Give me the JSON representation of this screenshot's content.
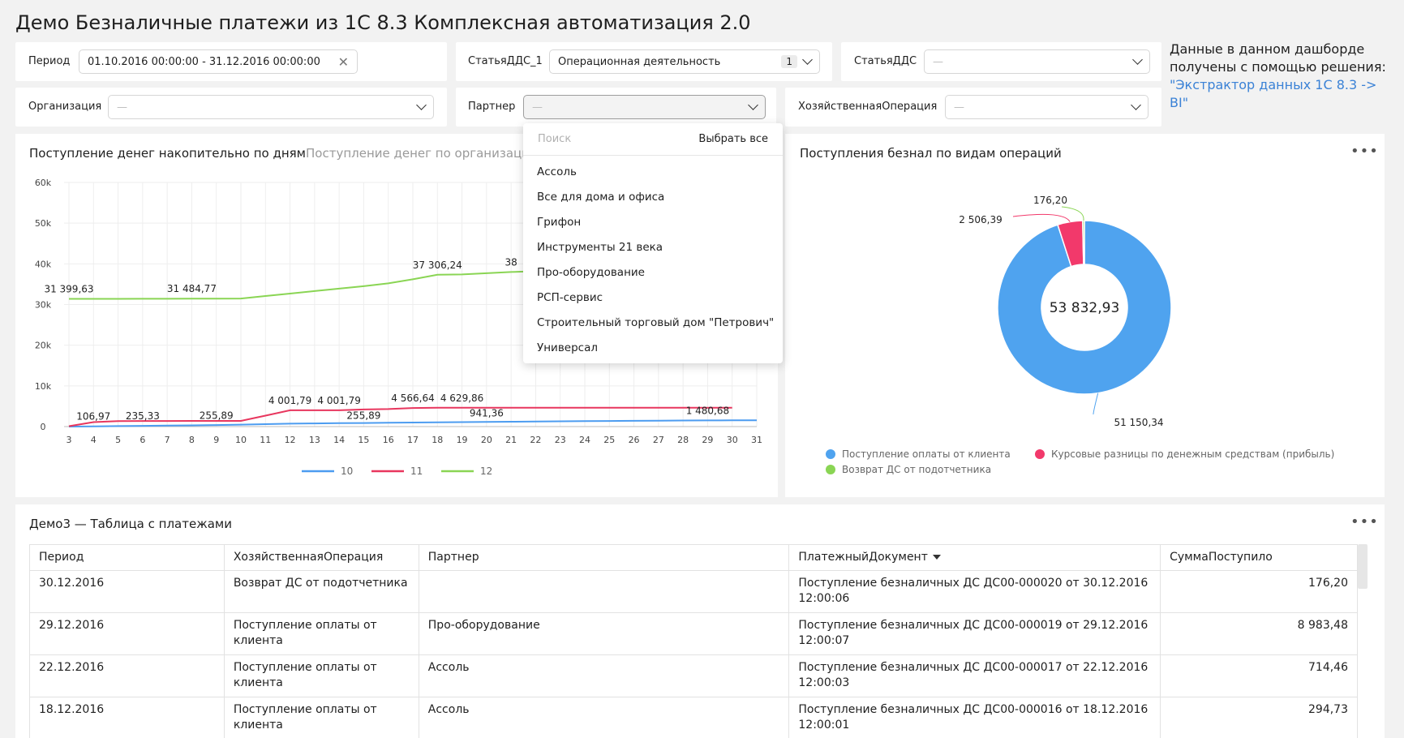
{
  "dashboard": {
    "title": "Демо Безналичные платежи из 1С 8.3 Комплексная автоматизация 2.0"
  },
  "filters": {
    "period": {
      "label": "Период",
      "value": "01.10.2016 00:00:00 - 31.12.2016 00:00:00"
    },
    "statya1": {
      "label": "СтатьяДДС_1",
      "value": "Операционная деятельность",
      "count": "1"
    },
    "statya": {
      "label": "СтатьяДДС",
      "value": "—"
    },
    "org": {
      "label": "Организация",
      "value": "—"
    },
    "partner": {
      "label": "Партнер",
      "value": "—"
    },
    "operation": {
      "label": "ХозяйственнаяОперация",
      "value": "—"
    }
  },
  "info": {
    "text": "Данные в данном дашборде получены с помощью решения:",
    "link": "\"Экстрактор данных 1С 8.3 -> BI\""
  },
  "partner_dropdown": {
    "search_placeholder": "Поиск",
    "select_all": "Выбрать все",
    "items": [
      "Ассоль",
      "Все для дома и офиса",
      "Грифон",
      "Инструменты 21 века",
      "Про-оборудование",
      "РСП-сервис",
      "Строительный торговый дом \"Петрович\"",
      "Универсал"
    ]
  },
  "line_card": {
    "tab_active": "Поступление денег накопительно по дням",
    "tab_inactive": "Поступление денег по организациям"
  },
  "pie_card": {
    "title": "Поступления безнал по видам операций"
  },
  "table_card": {
    "title": "Демо3 — Таблица с платежами"
  },
  "chart_data": [
    {
      "type": "line",
      "x": [
        "3",
        "4",
        "5",
        "6",
        "7",
        "8",
        "9",
        "10",
        "11",
        "12",
        "13",
        "14",
        "15",
        "16",
        "17",
        "18",
        "19",
        "20",
        "21",
        "22",
        "23",
        "24",
        "25",
        "26",
        "27",
        "28",
        "29",
        "30",
        "31"
      ],
      "ylim": [
        0,
        60000
      ],
      "yticks": [
        "0",
        "10k",
        "20k",
        "30k",
        "40k",
        "50k",
        "60k"
      ],
      "series": [
        {
          "name": "10",
          "color": "#4c9cf0",
          "values": [
            0,
            50,
            110,
            170,
            230,
            300,
            380,
            480,
            600,
            720,
            780,
            830,
            880,
            930,
            1000,
            1050,
            1100,
            1150,
            1200,
            1250,
            1300,
            1340,
            1380,
            1420,
            1460,
            1500,
            1520,
            1540,
            1560
          ]
        },
        {
          "name": "11",
          "color": "#e8365e",
          "values": [
            106.97,
            1100,
            1350,
            1370,
            1380,
            1390,
            1395,
            1400,
            2700,
            4001.79,
            4001.79,
            4001.79,
            4200,
            4300,
            4566.64,
            4629.86,
            4629.86,
            4650,
            4650,
            4650,
            4650,
            4650,
            4650,
            4650,
            4650,
            4650,
            4650,
            4650,
            null
          ]
        },
        {
          "name": "12",
          "color": "#8ad554",
          "values": [
            31399.63,
            31400,
            31400,
            31410,
            31420,
            31440,
            31460,
            31484.77,
            32100,
            32700,
            33300,
            33900,
            34500,
            35200,
            36200,
            37306.24,
            37400,
            37700,
            38000,
            38200,
            38300,
            38400,
            38450,
            38500,
            38550,
            38600,
            38650,
            38700,
            null
          ]
        }
      ],
      "data_labels": [
        {
          "text": "31 399,63",
          "x": "3",
          "y": 31399.63
        },
        {
          "text": "31 484,77",
          "x": "8",
          "y": 31484.77
        },
        {
          "text": "37 306,24",
          "x": "18",
          "y": 37306.24
        },
        {
          "text": "38",
          "x": "21",
          "y": 38000
        },
        {
          "text": "106,97",
          "x": "4",
          "y": 106.97
        },
        {
          "text": "235,33",
          "x": "6",
          "y": 235.33
        },
        {
          "text": "255,89",
          "x": "9",
          "y": 255.89
        },
        {
          "text": "4 001,79",
          "x": "12",
          "y": 4001.79
        },
        {
          "text": "4 001,79",
          "x": "14",
          "y": 4001.79
        },
        {
          "text": "255,89",
          "x": "15",
          "y": 255.89
        },
        {
          "text": "4 566,64",
          "x": "17",
          "y": 4566.64
        },
        {
          "text": "4 629,86",
          "x": "19",
          "y": 4629.86
        },
        {
          "text": "941,36",
          "x": "20",
          "y": 941.36
        },
        {
          "text": "1 480,68",
          "x": "29",
          "y": 1480.68
        }
      ],
      "legend": "bottom"
    },
    {
      "type": "pie",
      "total": "53 832,93",
      "slices": [
        {
          "name": "Поступление оплаты от клиента",
          "value": 51150.34,
          "label": "51 150,34",
          "color": "#4fa3ef"
        },
        {
          "name": "Курсовые разницы по денежным средствам (прибыль)",
          "value": 2506.39,
          "label": "2 506,39",
          "color": "#f2396b"
        },
        {
          "name": "Возврат ДС от подотчетника",
          "value": 176.2,
          "label": "176,20",
          "color": "#8ad554"
        }
      ],
      "legend": "bottom"
    }
  ],
  "table": {
    "columns": [
      "Период",
      "ХозяйственнаяОперация",
      "Партнер",
      "ПлатежныйДокумент",
      "СуммаПоступило"
    ],
    "rows": [
      [
        "30.12.2016",
        "Возврат ДС от подотчетника",
        "",
        "Поступление безналичных ДС ДС00-000020 от 30.12.2016 12:00:06",
        "176,20"
      ],
      [
        "29.12.2016",
        "Поступление оплаты от клиента",
        "Про-оборудование",
        "Поступление безналичных ДС ДС00-000019 от 29.12.2016 12:00:07",
        "8 983,48"
      ],
      [
        "22.12.2016",
        "Поступление оплаты от клиента",
        "Ассоль",
        "Поступление безналичных ДС ДС00-000017 от 22.12.2016 12:00:03",
        "714,46"
      ],
      [
        "18.12.2016",
        "Поступление оплаты от клиента",
        "Ассоль",
        "Поступление безналичных ДС ДС00-000016 от 18.12.2016 12:00:01",
        "294,73"
      ]
    ]
  }
}
